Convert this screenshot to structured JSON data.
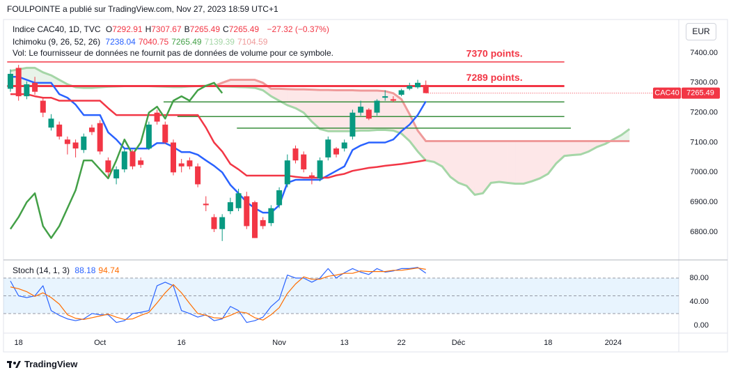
{
  "header": {
    "publisher": "FOULPOINTE a publié sur TradingView.com, Nov 27, 2023 18:59 UTC+1"
  },
  "currency_button": "EUR",
  "footer": {
    "brand": "TradingView"
  },
  "chart_data": {
    "type": "candlestick",
    "legend": {
      "symbol": "Indice CAC40, 1D, TVC",
      "ohlc": [
        {
          "key": "O",
          "value": "7292.91"
        },
        {
          "key": "H",
          "value": "7307.67"
        },
        {
          "key": "B",
          "value": "7265.49"
        },
        {
          "key": "C",
          "value": "7265.49"
        }
      ],
      "change": "−27.32 (−0.37%)",
      "ichimoku": "Ichimoku (9, 26, 52, 26)",
      "ichimoku_values": [
        "7238.04",
        "7040.75",
        "7265.49",
        "7139.39",
        "7104.59"
      ],
      "volume_note": "Vol: Le fournisseur de données ne fournit pas de données de volume pour ce symbole."
    },
    "colors": {
      "up": "#089981",
      "down": "#f23645"
    },
    "candles": {
      "open": [
        7280,
        7350,
        7255,
        7300,
        7240,
        7150,
        7160,
        7110,
        7100,
        7075,
        7150,
        7165,
        7040,
        6980,
        7010,
        7070,
        7040,
        7080,
        7200,
        7160,
        7100,
        7030,
        7040,
        7020,
        6895,
        6850,
        6810,
        6870,
        6880,
        6920,
        6900,
        6840,
        6830,
        6890,
        6960,
        7080,
        7060,
        6990,
        6980,
        7050,
        7080,
        7080,
        7120,
        7200,
        7210,
        7200,
        7250,
        7245,
        7260,
        7280,
        7285,
        7292.91
      ],
      "high": [
        7345,
        7360,
        7305,
        7320,
        7250,
        7195,
        7170,
        7120,
        7110,
        7130,
        7160,
        7175,
        7050,
        7020,
        7080,
        7075,
        7050,
        7170,
        7210,
        7170,
        7110,
        7045,
        7050,
        7030,
        6920,
        6860,
        6860,
        6915,
        6945,
        6935,
        6905,
        6850,
        6890,
        6950,
        7060,
        7090,
        7070,
        7000,
        7050,
        7120,
        7085,
        7110,
        7210,
        7240,
        7215,
        7245,
        7275,
        7255,
        7280,
        7300,
        7310,
        7307.67
      ],
      "low": [
        7270,
        7240,
        7245,
        7260,
        7185,
        7140,
        7110,
        7060,
        7050,
        7065,
        7125,
        7060,
        6985,
        6960,
        7000,
        7010,
        7015,
        7075,
        7160,
        7095,
        6990,
        7000,
        7010,
        6950,
        6870,
        6800,
        6770,
        6860,
        6870,
        6810,
        6780,
        6810,
        6820,
        6880,
        6950,
        7030,
        7000,
        6960,
        6970,
        7040,
        7050,
        7070,
        7110,
        7190,
        7175,
        7190,
        7240,
        7235,
        7255,
        7275,
        7280,
        7265.49
      ],
      "close": [
        7330,
        7255,
        7295,
        7270,
        7200,
        7180,
        7120,
        7095,
        7080,
        7120,
        7135,
        7070,
        7000,
        7010,
        7070,
        7020,
        7025,
        7160,
        7170,
        7100,
        7000,
        7020,
        7020,
        6960,
        6890,
        6810,
        6850,
        6900,
        6930,
        6820,
        6780,
        6820,
        6880,
        6940,
        7040,
        7040,
        7010,
        6980,
        7040,
        7110,
        7060,
        7100,
        7200,
        7220,
        7180,
        7240,
        7255,
        7240,
        7275,
        7290,
        7300,
        7265.49
      ]
    },
    "series": [
      {
        "color": "#2962ff",
        "values": [
          7320,
          7320,
          7310,
          7300,
          7300,
          7300,
          7262,
          7250,
          7227,
          7192,
          7192,
          7192,
          7134,
          7110,
          7080,
          7080,
          7080,
          7080,
          7098,
          7098,
          7085,
          7068,
          7068,
          7059,
          7040,
          7022,
          7000,
          6958,
          6930,
          6900,
          6880,
          6865,
          6865,
          6890,
          6965,
          6975,
          6975,
          6975,
          6975,
          6990,
          7005,
          7020,
          7075,
          7090,
          7100,
          7100,
          7100,
          7110,
          7138,
          7160,
          7192,
          7238.04
        ]
      },
      {
        "color": "#f23645",
        "values": [
          7262,
          7262,
          7262,
          7255,
          7250,
          7250,
          7240,
          7240,
          7240,
          7240,
          7240,
          7240,
          7215,
          7192,
          7192,
          7192,
          7192,
          7192,
          7192,
          7192,
          7192,
          7192,
          7192,
          7192,
          7150,
          7100,
          7070,
          7028,
          7010,
          6989,
          6989,
          6989,
          6989,
          6989,
          6989,
          6985,
          6982,
          6982,
          6982,
          6982,
          6990,
          6995,
          7005,
          7010,
          7015,
          7018,
          7022,
          7025,
          7028,
          7032,
          7036,
          7040.75
        ]
      },
      {
        "color": "#43a047",
        "values": [
          6810,
          6850,
          6900,
          6930,
          6820,
          6780,
          6820,
          6880,
          6940,
          7040,
          7040,
          7010,
          6980,
          7040,
          7110,
          7060,
          7100,
          7200,
          7220,
          7180,
          7240,
          7255,
          7240,
          7275,
          7290,
          7300,
          7265.49
        ]
      },
      {
        "color": "#a5d6a7",
        "values": [
          7340,
          7345,
          7350,
          7350,
          7335,
          7325,
          7310,
          7295,
          7285,
          7283,
          7283,
          7285,
          7287,
          7288,
          7289,
          7289,
          7289,
          7289,
          7288,
          7287,
          7286,
          7286,
          7288,
          7289,
          7290,
          7290,
          7288,
          7287,
          7286,
          7285,
          7283,
          7275,
          7255,
          7240,
          7225,
          7215,
          7200,
          7170,
          7145,
          7138,
          7138,
          7138,
          7138,
          7140,
          7140,
          7142,
          7142,
          7140,
          7130,
          7105,
          7070,
          7040,
          7035,
          7020,
          6985,
          6965,
          6955,
          6925,
          6930,
          6965,
          6968,
          6965,
          6962,
          6962,
          6970,
          6980,
          6995,
          7030,
          7055,
          7058,
          7060,
          7070,
          7085,
          7095,
          7110,
          7125,
          7145
        ]
      },
      {
        "color": "#ef9a9a",
        "values": [
          7289,
          7289,
          7289,
          7289,
          7289,
          7289,
          7289,
          7289,
          7289,
          7289,
          7289,
          7289,
          7289,
          7289,
          7289,
          7289,
          7289,
          7289,
          7289,
          7289,
          7289,
          7289,
          7289,
          7289,
          7289,
          7289,
          7300,
          7310,
          7310,
          7310,
          7310,
          7300,
          7280,
          7280,
          7279,
          7278,
          7278,
          7277,
          7276,
          7276,
          7275,
          7275,
          7275,
          7274,
          7274,
          7274,
          7272,
          7265,
          7245,
          7195,
          7140,
          7104.59,
          7104.59,
          7104.59,
          7104.59,
          7104.59,
          7104.59,
          7104.59,
          7104.59,
          7104.59,
          7104.59,
          7104.59,
          7104.59,
          7104.59,
          7104.59,
          7104.59,
          7104.59,
          7104.59,
          7104.59,
          7104.59,
          7104.59,
          7104.59,
          7104.59,
          7104.59,
          7104.59,
          7104.59,
          7104.59
        ]
      }
    ],
    "cloud": {
      "up_color": "rgba(67,160,71,0.12)",
      "down_color": "rgba(242,54,69,0.12)"
    },
    "hlines": [
      {
        "value": 7370,
        "label": "7370 points.",
        "color": "#f23645",
        "width": 1.5,
        "x": [
          -0.4,
          68
        ]
      },
      {
        "value": 7289,
        "label": "7289 points.",
        "color": "#f23645",
        "width": 3,
        "x": [
          -0.4,
          68
        ]
      },
      {
        "value": 7236,
        "color": "#388e3c",
        "width": 1.5,
        "x": [
          18.8,
          68
        ]
      },
      {
        "value": 7187,
        "color": "#388e3c",
        "width": 1.5,
        "x": [
          20.5,
          68
        ]
      },
      {
        "value": 7148,
        "color": "#388e3c",
        "width": 1.5,
        "x": [
          27.8,
          68.8
        ]
      }
    ],
    "price_tag": {
      "symbol": "CAC40",
      "value": 7265.49
    },
    "xlim": [
      -1.28,
      82.05
    ],
    "xticks": [
      {
        "value": 1,
        "label": "18"
      },
      {
        "value": 11,
        "label": "Oct"
      },
      {
        "value": 21,
        "label": "16"
      },
      {
        "value": 33,
        "label": "Nov"
      },
      {
        "value": 41,
        "label": "13"
      },
      {
        "value": 48,
        "label": "22"
      },
      {
        "value": 55,
        "label": "Déc"
      },
      {
        "value": 66,
        "label": "18"
      },
      {
        "value": 74,
        "label": "2024"
      }
    ],
    "ylim": [
      6709,
      7512
    ],
    "yticks": [
      {
        "value": 7400,
        "label": "7400.00"
      },
      {
        "value": 7300,
        "label": "7300.00"
      },
      {
        "value": 7200,
        "label": "7200.00"
      },
      {
        "value": 7100,
        "label": "7100.00"
      },
      {
        "value": 7000,
        "label": "7000.00"
      },
      {
        "value": 6900,
        "label": "6900.00"
      },
      {
        "value": 6800,
        "label": "6800.00"
      }
    ],
    "stoch": {
      "label": "Stoch (14, 1, 3)",
      "legend_values": [
        "88.18",
        "94.74"
      ],
      "series": [
        {
          "color": "#2962ff",
          "values": [
            75,
            50,
            47,
            50,
            67,
            25,
            17,
            11,
            8,
            11,
            20,
            18,
            18,
            5,
            8,
            20,
            22,
            25,
            67,
            73,
            67,
            25,
            20,
            14,
            18,
            8,
            11,
            32,
            25,
            5,
            8,
            14,
            32,
            44,
            85,
            80,
            80,
            73,
            80,
            96,
            80,
            89,
            96,
            90,
            86,
            96,
            90,
            92,
            96,
            96,
            98,
            88.18
          ]
        },
        {
          "color": "#ff6d00",
          "values": [
            65,
            62,
            57,
            49,
            55,
            47,
            36,
            18,
            12,
            10,
            13,
            16,
            19,
            14,
            10,
            11,
            17,
            22,
            38,
            55,
            69,
            55,
            37,
            20,
            17,
            13,
            12,
            17,
            23,
            21,
            13,
            9,
            18,
            30,
            54,
            70,
            82,
            78,
            78,
            83,
            85,
            88,
            88,
            92,
            91,
            91,
            91,
            93,
            93,
            95,
            97,
            94.74
          ]
        }
      ],
      "ylim": [
        -13,
        110.6
      ],
      "yticks": [
        {
          "value": 80,
          "label": "80.00"
        },
        {
          "value": 40,
          "label": "40.00"
        },
        {
          "value": 0,
          "label": "0.00"
        }
      ],
      "bands": [
        80,
        50,
        20
      ],
      "band_color": "rgba(33,150,243,0.1)"
    }
  }
}
